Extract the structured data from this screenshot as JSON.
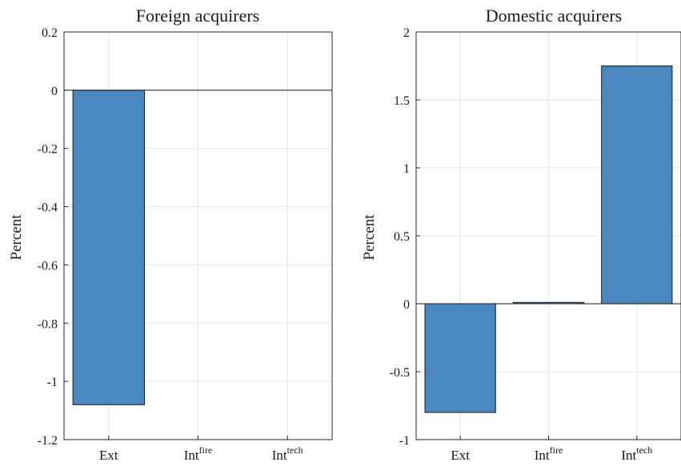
{
  "chart_data": [
    {
      "type": "bar",
      "title": "Foreign acquirers",
      "ylabel": "Percent",
      "xlabel": "",
      "categories": [
        {
          "base": "Ext",
          "sup": ""
        },
        {
          "base": "Int",
          "sup": "fire"
        },
        {
          "base": "Int",
          "sup": "tech"
        }
      ],
      "values": [
        -1.08,
        0,
        0
      ],
      "ylim": [
        -1.2,
        0.2
      ],
      "yticks": [
        "0.2",
        "0",
        "-0.2",
        "-0.4",
        "-0.6",
        "-0.8",
        "-1",
        "-1.2"
      ],
      "grid": true,
      "bar_color": "#4a87c0"
    },
    {
      "type": "bar",
      "title": "Domestic acquirers",
      "ylabel": "Percent",
      "xlabel": "",
      "categories": [
        {
          "base": "Ext",
          "sup": ""
        },
        {
          "base": "Int",
          "sup": "fire"
        },
        {
          "base": "Int",
          "sup": "tech"
        }
      ],
      "values": [
        -0.8,
        0.01,
        1.75
      ],
      "ylim": [
        -1,
        2
      ],
      "yticks": [
        "2",
        "1.5",
        "1",
        "0.5",
        "0",
        "-0.5",
        "-1"
      ],
      "grid": true,
      "bar_color": "#4a87c0"
    }
  ]
}
